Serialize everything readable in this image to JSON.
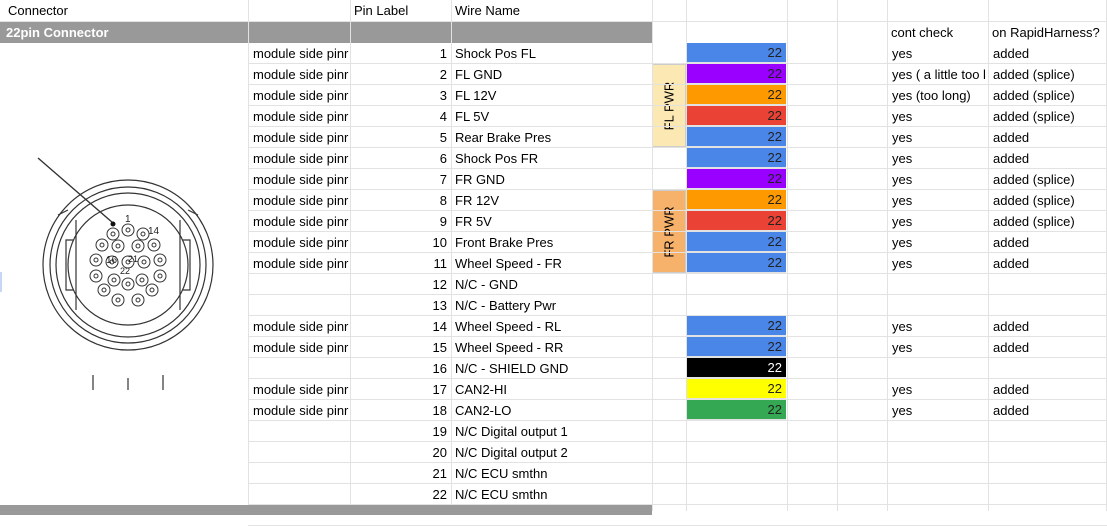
{
  "headers": {
    "connector": "Connector",
    "pin_label": "Pin Label",
    "wire_name": "Wire Name",
    "cont_check": "cont check",
    "on_rapid": "on RapidHarness?"
  },
  "section_title": "22pin Connector",
  "connector_diagram": {
    "labels": {
      "a": "1",
      "b": "14",
      "c": "16",
      "d": "21",
      "e": "22"
    }
  },
  "groups": [
    {
      "label": "FL PWR",
      "color": "#fce8b2"
    },
    {
      "label": "FR PWR",
      "color": "#f6b26b"
    }
  ],
  "colors": {
    "blue": "#4a86e8",
    "purple": "#9900ff",
    "orange": "#ff9900",
    "red": "#ea4335",
    "black": "#000000",
    "yellow": "#ffff00",
    "green": "#34a853"
  },
  "rows": [
    {
      "side": "module side pinr",
      "pin": "1",
      "wire": "Shock Pos FL",
      "gauge": "22",
      "color": "blue",
      "check": "yes",
      "rapid": "added"
    },
    {
      "side": "module side pinr",
      "pin": "2",
      "wire": "FL GND",
      "gauge": "22",
      "color": "purple",
      "check": "yes ( a little too l",
      "rapid": "added (splice)"
    },
    {
      "side": "module side pinr",
      "pin": "3",
      "wire": "FL 12V",
      "gauge": "22",
      "color": "orange",
      "check": "yes (too long)",
      "rapid": "added (splice)"
    },
    {
      "side": "module side pinr",
      "pin": "4",
      "wire": "FL 5V",
      "gauge": "22",
      "color": "red",
      "check": "yes",
      "rapid": "added (splice)"
    },
    {
      "side": "module side pinr",
      "pin": "5",
      "wire": "Rear Brake Pres",
      "gauge": "22",
      "color": "blue",
      "check": "yes",
      "rapid": "added"
    },
    {
      "side": "module side pinr",
      "pin": "6",
      "wire": "Shock Pos FR",
      "gauge": "22",
      "color": "blue",
      "check": "yes",
      "rapid": "added"
    },
    {
      "side": "module side pinr",
      "pin": "7",
      "wire": "FR GND",
      "gauge": "22",
      "color": "purple",
      "check": "yes",
      "rapid": "added (splice)"
    },
    {
      "side": "module side pinr",
      "pin": "8",
      "wire": "FR 12V",
      "gauge": "22",
      "color": "orange",
      "check": "yes",
      "rapid": "added (splice)"
    },
    {
      "side": "module side pinr",
      "pin": "9",
      "wire": "FR 5V",
      "gauge": "22",
      "color": "red",
      "check": "yes",
      "rapid": "added (splice)"
    },
    {
      "side": "module side pinr",
      "pin": "10",
      "wire": "Front Brake Pres",
      "gauge": "22",
      "color": "blue",
      "check": "yes",
      "rapid": "added"
    },
    {
      "side": "module side pinr",
      "pin": "11",
      "wire": "Wheel Speed - FR",
      "gauge": "22",
      "color": "blue",
      "check": "yes",
      "rapid": "added"
    },
    {
      "side": "",
      "pin": "12",
      "wire": "N/C - GND",
      "gauge": "",
      "color": "",
      "check": "",
      "rapid": ""
    },
    {
      "side": "",
      "pin": "13",
      "wire": "N/C - Battery Pwr",
      "gauge": "",
      "color": "",
      "check": "",
      "rapid": ""
    },
    {
      "side": "module side pinr",
      "pin": "14",
      "wire": "Wheel Speed - RL",
      "gauge": "22",
      "color": "blue",
      "check": "yes",
      "rapid": "added"
    },
    {
      "side": "module side pinr",
      "pin": "15",
      "wire": "Wheel Speed - RR",
      "gauge": "22",
      "color": "blue",
      "check": "yes",
      "rapid": "added"
    },
    {
      "side": "",
      "pin": "16",
      "wire": "N/C - SHIELD GND",
      "gauge": "22",
      "color": "black",
      "check": "",
      "rapid": ""
    },
    {
      "side": "module side pinr",
      "pin": "17",
      "wire": "CAN2-HI",
      "gauge": "22",
      "color": "yellow",
      "check": "yes",
      "rapid": "added"
    },
    {
      "side": "module side pinr",
      "pin": "18",
      "wire": "CAN2-LO",
      "gauge": "22",
      "color": "green",
      "check": "yes",
      "rapid": "added"
    },
    {
      "side": "",
      "pin": "19",
      "wire": "N/C Digital output 1",
      "gauge": "",
      "color": "",
      "check": "",
      "rapid": ""
    },
    {
      "side": "",
      "pin": "20",
      "wire": "N/C Digital output 2",
      "gauge": "",
      "color": "",
      "check": "",
      "rapid": ""
    },
    {
      "side": "",
      "pin": "21",
      "wire": "N/C ECU smthn",
      "gauge": "",
      "color": "",
      "check": "",
      "rapid": ""
    },
    {
      "side": "",
      "pin": "22",
      "wire": "N/C ECU smthn",
      "gauge": "",
      "color": "",
      "check": "",
      "rapid": ""
    }
  ]
}
